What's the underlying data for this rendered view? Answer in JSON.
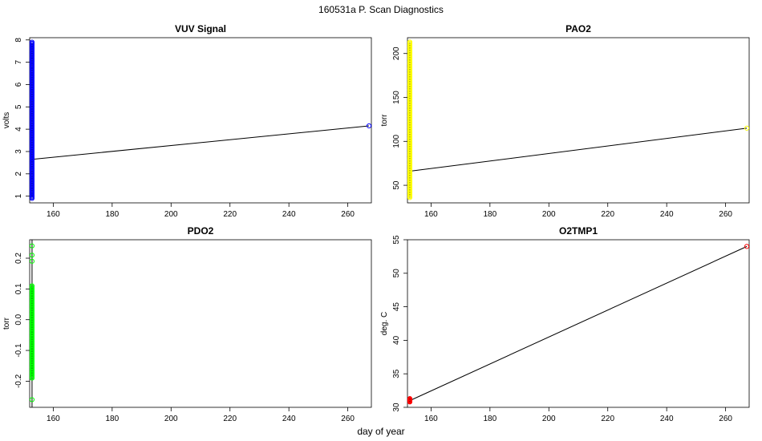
{
  "figure": {
    "title": "160531a   P. Scan Diagnostics",
    "shared_xlabel": "day of year"
  },
  "chart_data": [
    {
      "type": "scatter",
      "title": "VUV Signal",
      "xlabel": "",
      "ylabel": "volts",
      "xlim": [
        152,
        268
      ],
      "ylim": [
        0.7,
        8.1
      ],
      "xticks": [
        160,
        180,
        200,
        220,
        240,
        260
      ],
      "yticks": [
        1,
        2,
        3,
        4,
        5,
        6,
        7,
        8
      ],
      "color": "#0000ff",
      "marker": "open-circle",
      "cluster": {
        "x": 152.8,
        "y_min": 0.9,
        "y_max": 7.9
      },
      "line": {
        "x": [
          152.8,
          267.2
        ],
        "y": [
          2.65,
          4.15
        ]
      },
      "outlier": {
        "x": 267.2,
        "y": 4.15
      }
    },
    {
      "type": "scatter",
      "title": "PAO2",
      "xlabel": "",
      "ylabel": "torr",
      "xlim": [
        152,
        268
      ],
      "ylim": [
        30,
        218
      ],
      "xticks": [
        160,
        180,
        200,
        220,
        240,
        260
      ],
      "yticks": [
        50,
        100,
        150,
        200
      ],
      "color": "#ffff00",
      "marker": "open-circle",
      "cluster": {
        "x": 152.8,
        "y_min": 36,
        "y_max": 213
      },
      "line": {
        "x": [
          152.8,
          267.2
        ],
        "y": [
          66,
          115
        ]
      },
      "outlier": {
        "x": 267.2,
        "y": 115
      }
    },
    {
      "type": "scatter",
      "title": "PDO2",
      "xlabel": "",
      "ylabel": "torr",
      "xlim": [
        152,
        268
      ],
      "ylim": [
        -0.285,
        0.26
      ],
      "xticks": [
        160,
        180,
        200,
        220,
        240,
        260
      ],
      "yticks": [
        -0.2,
        -0.1,
        0.0,
        0.1,
        0.2
      ],
      "color": "#00ff00",
      "marker": "open-circle",
      "cluster": {
        "x": 152.8,
        "y_min": -0.19,
        "y_max": 0.11
      },
      "extra_points": [
        0.19,
        0.21,
        0.24,
        -0.26
      ],
      "line": {
        "x": [
          152.8,
          152.8
        ],
        "y": [
          -0.285,
          0.26
        ]
      },
      "outlier": null
    },
    {
      "type": "scatter",
      "title": "O2TMP1",
      "xlabel": "",
      "ylabel": "deg. C",
      "xlim": [
        152,
        268
      ],
      "ylim": [
        30,
        55
      ],
      "xticks": [
        160,
        180,
        200,
        220,
        240,
        260
      ],
      "yticks": [
        30,
        35,
        40,
        45,
        50,
        55
      ],
      "color": "#ff0000",
      "marker": "open-circle",
      "cluster": {
        "x": 152.8,
        "y_min": 30.8,
        "y_max": 31.3
      },
      "line": {
        "x": [
          152.8,
          267.2
        ],
        "y": [
          31.0,
          54.0
        ]
      },
      "outlier": {
        "x": 267.2,
        "y": 54.0
      }
    }
  ]
}
